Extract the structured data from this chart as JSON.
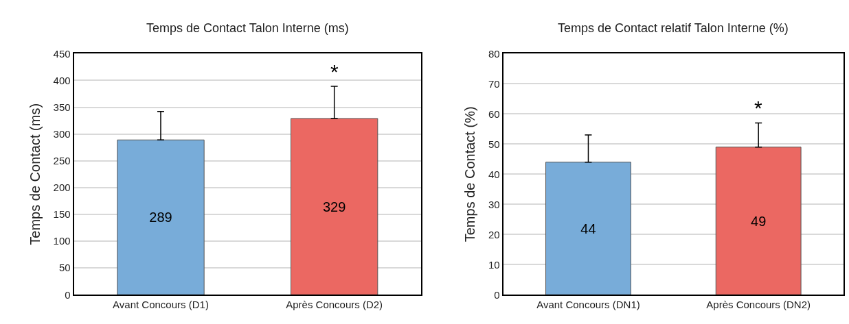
{
  "chart_data": [
    {
      "type": "bar",
      "title": "Temps de Contact Talon Interne (ms)",
      "ylabel": "Temps de Contact (ms)",
      "categories": [
        "Avant Concours (D1)",
        "Après Concours (D2)"
      ],
      "values": [
        289,
        329
      ],
      "colors": [
        "#78acd9",
        "#eb6862"
      ],
      "errors": [
        [
          289,
          342
        ],
        [
          329,
          389
        ]
      ],
      "ylim": [
        0,
        450
      ],
      "yticks": [
        0,
        50,
        100,
        150,
        200,
        250,
        300,
        350,
        400,
        450
      ],
      "grid": "y",
      "data_labels": true,
      "annotations": [
        "*"
      ]
    },
    {
      "type": "bar",
      "title": "Temps de Contact relatif Talon Interne (%)",
      "ylabel": "Temps de Contact (%)",
      "categories": [
        "Avant Concours (DN1)",
        "Après Concours (DN2)"
      ],
      "values": [
        44,
        49
      ],
      "colors": [
        "#78acd9",
        "#eb6862"
      ],
      "errors": [
        [
          44,
          53
        ],
        [
          49,
          57
        ]
      ],
      "ylim": [
        0,
        80
      ],
      "yticks": [
        0,
        10,
        20,
        30,
        40,
        50,
        60,
        70,
        80
      ],
      "grid": "y",
      "data_labels": true,
      "annotations": [
        "*"
      ]
    }
  ]
}
